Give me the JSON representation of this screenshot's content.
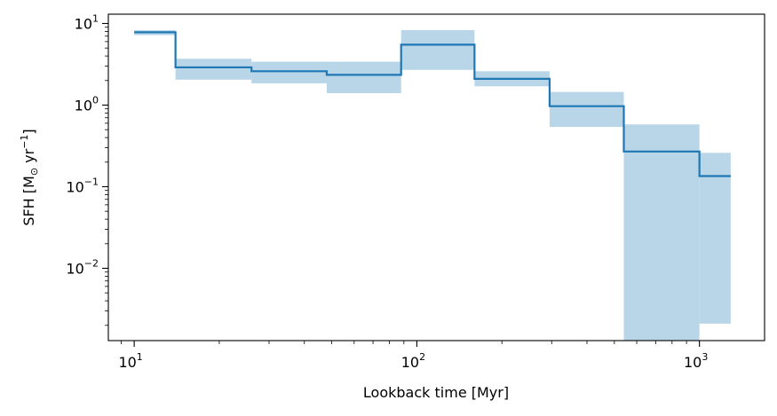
{
  "chart_data": {
    "type": "line",
    "title": "",
    "xlabel": "Lookback time [Myr]",
    "ylabel_parts": {
      "prefix": "SFH [M",
      "sun": "⊙",
      "unit": " yr",
      "exp": "−1",
      "suffix": "]"
    },
    "xscale": "log",
    "yscale": "log",
    "xlim": [
      8.1,
      1700
    ],
    "ylim": [
      0.0013,
      13
    ],
    "grid": false,
    "legend": "none",
    "colors": {
      "line": "#1f77b4",
      "band": "#b9d5e8"
    },
    "xticks": [
      {
        "value": 10,
        "base": "10",
        "exp": "1"
      },
      {
        "value": 100,
        "base": "10",
        "exp": "2"
      },
      {
        "value": 1000,
        "base": "10",
        "exp": "3"
      }
    ],
    "yticks": [
      {
        "value": 10,
        "base": "10",
        "exp": "1"
      },
      {
        "value": 1,
        "base": "10",
        "exp": "0"
      },
      {
        "value": 0.1,
        "base": "10",
        "exp": "−1"
      },
      {
        "value": 0.01,
        "base": "10",
        "exp": "−2"
      }
    ],
    "series": [
      {
        "bins": [
          {
            "x0": 10,
            "x1": 14,
            "y": 7.8,
            "lo": 7.2,
            "hi": 8.3
          },
          {
            "x0": 14,
            "x1": 26,
            "y": 2.9,
            "lo": 2.05,
            "hi": 3.7
          },
          {
            "x0": 26,
            "x1": 48,
            "y": 2.6,
            "lo": 1.85,
            "hi": 3.4
          },
          {
            "x0": 48,
            "x1": 88,
            "y": 2.35,
            "lo": 1.4,
            "hi": 3.4
          },
          {
            "x0": 88,
            "x1": 160,
            "y": 5.5,
            "lo": 2.7,
            "hi": 8.3
          },
          {
            "x0": 160,
            "x1": 295,
            "y": 2.1,
            "lo": 1.7,
            "hi": 2.6
          },
          {
            "x0": 295,
            "x1": 540,
            "y": 0.97,
            "lo": 0.54,
            "hi": 1.45
          },
          {
            "x0": 540,
            "x1": 1000,
            "y": 0.27,
            "lo": 0.0013,
            "hi": 0.58
          },
          {
            "x0": 1000,
            "x1": 1290,
            "y": 0.135,
            "lo": 0.0021,
            "hi": 0.26
          }
        ]
      }
    ]
  }
}
